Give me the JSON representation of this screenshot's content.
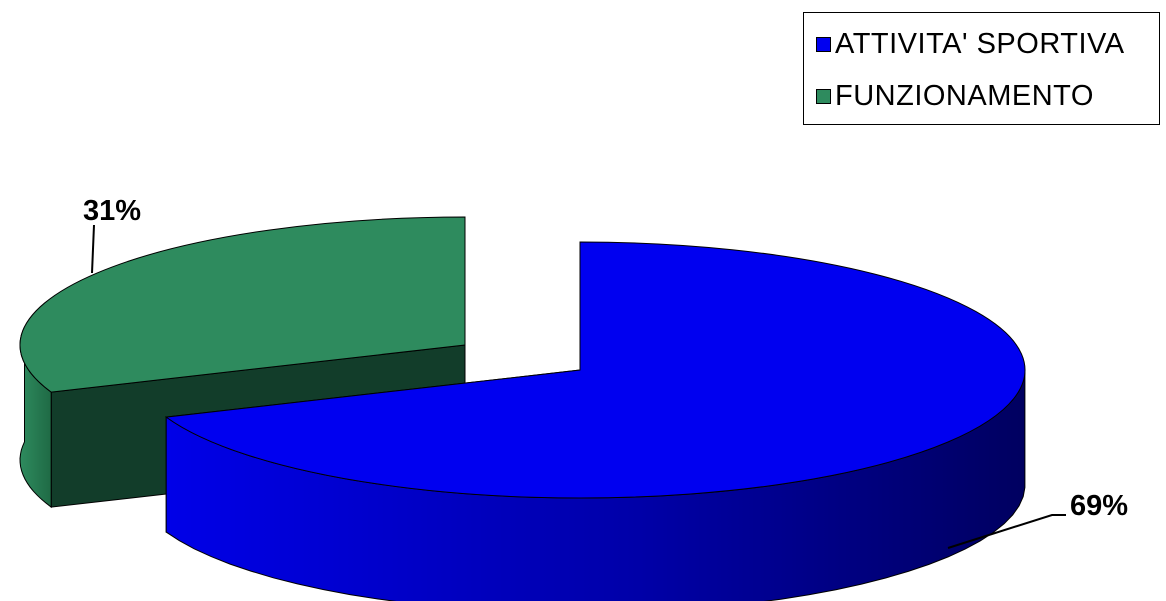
{
  "chart_data": {
    "type": "pie",
    "style": "3d-exploded",
    "categories": [
      "ATTIVITA' SPORTIVA",
      "FUNZIONAMENTO"
    ],
    "values": [
      69,
      31
    ],
    "labels": [
      "69%",
      "31%"
    ],
    "colors": [
      "#0000f0",
      "#2e8b5e"
    ],
    "side_colors": [
      "#00008a",
      "#123d2a"
    ],
    "legend_position": "top-right"
  }
}
